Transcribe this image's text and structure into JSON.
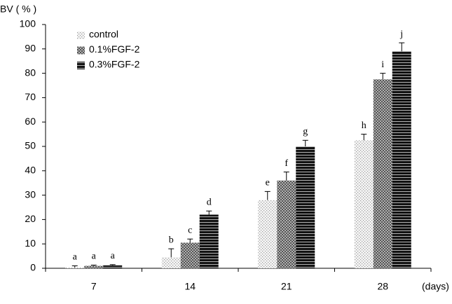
{
  "chart_data": {
    "type": "bar",
    "y_label": "BV ( % )",
    "x_label": "(days)",
    "categories": [
      "7",
      "14",
      "21",
      "28"
    ],
    "series": [
      {
        "name": "control",
        "color": "#9a9a9a",
        "pattern": "dots",
        "values": [
          0.3,
          4.5,
          28,
          52.5
        ],
        "errors": [
          0.7,
          3.5,
          3.5,
          2.5
        ],
        "letters": [
          "a",
          "b",
          "e",
          "h"
        ]
      },
      {
        "name": "0.1%FGF-2",
        "color": "#555555",
        "pattern": "checker",
        "values": [
          1,
          10.5,
          36,
          77.5
        ],
        "errors": [
          0.3,
          1.5,
          3.5,
          2.5
        ],
        "letters": [
          "a",
          "c",
          "f",
          "i"
        ]
      },
      {
        "name": "0.3%FGF-2",
        "color": "#111111",
        "pattern": "stripes",
        "values": [
          1.2,
          22,
          50,
          89
        ],
        "errors": [
          0.3,
          1.5,
          2.5,
          3.5
        ],
        "letters": [
          "a",
          "d",
          "g",
          "j"
        ]
      }
    ],
    "ylim": [
      0,
      100
    ],
    "yticks": [
      0,
      10,
      20,
      30,
      40,
      50,
      60,
      70,
      80,
      90,
      100
    ]
  }
}
